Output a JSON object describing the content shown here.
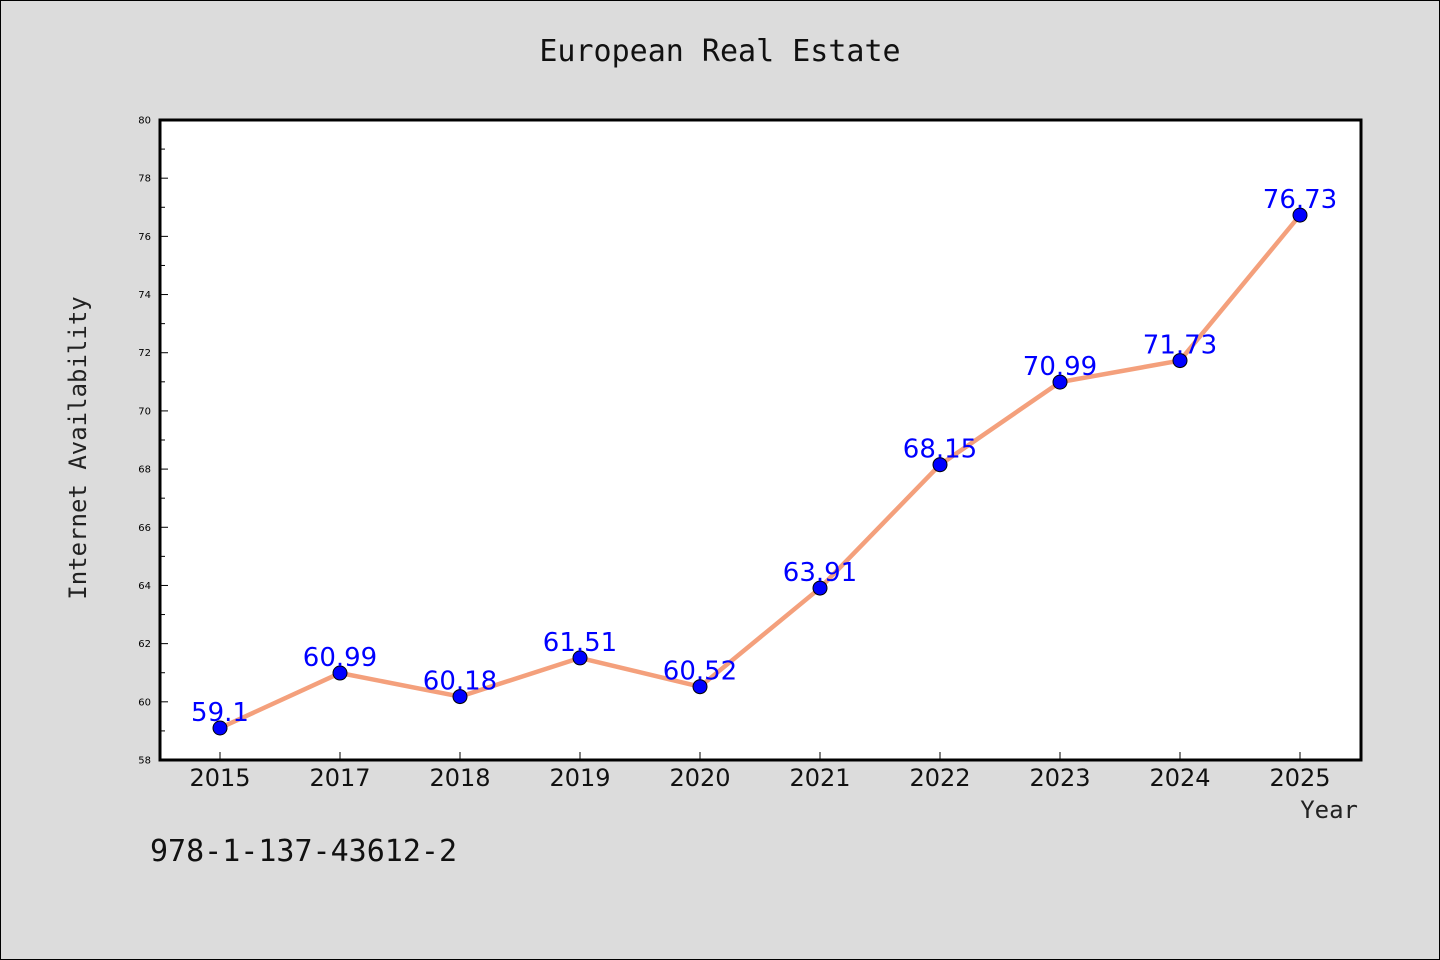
{
  "chart_data": {
    "type": "line",
    "title": "European Real Estate",
    "xlabel": "Year",
    "ylabel": "Internet Availability",
    "categories": [
      "2015",
      "2017",
      "2018",
      "2019",
      "2020",
      "2021",
      "2022",
      "2023",
      "2024",
      "2025"
    ],
    "series": [
      {
        "values": [
          59.1,
          60.99,
          60.18,
          61.51,
          60.52,
          63.91,
          68.15,
          70.99,
          71.73,
          76.73
        ],
        "labels": [
          "59.1",
          "60.99",
          "60.18",
          "61.51",
          "60.52",
          "63.91",
          "68.15",
          "70.99",
          "71.73",
          "76.73"
        ],
        "line_color": "#f4a07c",
        "marker_color": "#0000ff",
        "label_color": "#0000ff"
      }
    ],
    "ylim": [
      58,
      80
    ],
    "yticks": [
      "58",
      "60",
      "62",
      "64",
      "66",
      "68",
      "70",
      "72",
      "74",
      "76",
      "78",
      "80"
    ],
    "grid": false,
    "legend": "none"
  },
  "footnote": "978-1-137-43612-2"
}
